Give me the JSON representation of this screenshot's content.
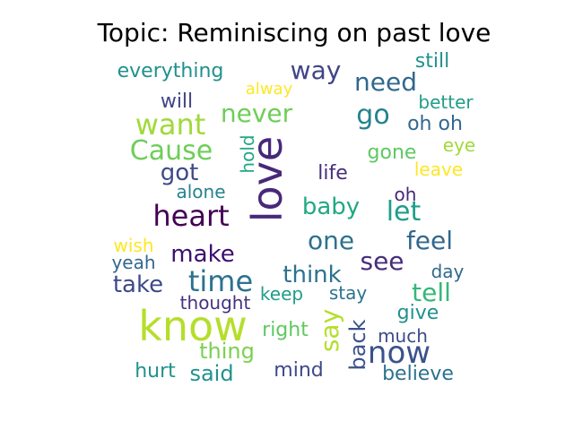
{
  "title": "Topic: Reminiscing on past love",
  "words": [
    {
      "text": "love",
      "color": "#482878",
      "vertical": true
    },
    {
      "text": "know",
      "color": "#b5de2b"
    },
    {
      "text": "heart",
      "color": "#440154"
    },
    {
      "text": "want",
      "color": "#a0da39"
    },
    {
      "text": "never",
      "color": "#6ece58"
    },
    {
      "text": "Cause",
      "color": "#6ece58"
    },
    {
      "text": "time",
      "color": "#2c728e"
    },
    {
      "text": "now",
      "color": "#3b528b"
    },
    {
      "text": "go",
      "color": "#26828e"
    },
    {
      "text": "way",
      "color": "#414487"
    },
    {
      "text": "need",
      "color": "#31688e"
    },
    {
      "text": "let",
      "color": "#1f9e89"
    },
    {
      "text": "feel",
      "color": "#31688e"
    },
    {
      "text": "one",
      "color": "#2c728e"
    },
    {
      "text": "see",
      "color": "#472d7b"
    },
    {
      "text": "make",
      "color": "#3b0f70"
    },
    {
      "text": "think",
      "color": "#2c728e"
    },
    {
      "text": "tell",
      "color": "#35b779"
    },
    {
      "text": "take",
      "color": "#3e4a89"
    },
    {
      "text": "say",
      "color": "#b5de2b",
      "vertical": true
    },
    {
      "text": "back",
      "color": "#3b528b",
      "vertical": true
    },
    {
      "text": "got",
      "color": "#3e4a89"
    },
    {
      "text": "baby",
      "color": "#22a884"
    },
    {
      "text": "still",
      "color": "#21918c"
    },
    {
      "text": "everything",
      "color": "#21918c"
    },
    {
      "text": "will",
      "color": "#414487"
    },
    {
      "text": "alway",
      "color": "#fde725"
    },
    {
      "text": "better",
      "color": "#1f9e89"
    },
    {
      "text": "oh oh",
      "color": "#31688e"
    },
    {
      "text": "eye",
      "color": "#a0da39"
    },
    {
      "text": "hold",
      "color": "#22a884",
      "vertical": true
    },
    {
      "text": "gone",
      "color": "#5ec962"
    },
    {
      "text": "leave",
      "color": "#fde725"
    },
    {
      "text": "life",
      "color": "#472d7b"
    },
    {
      "text": "alone",
      "color": "#26828e"
    },
    {
      "text": "oh",
      "color": "#482878"
    },
    {
      "text": "wish",
      "color": "#fde725"
    },
    {
      "text": "yeah",
      "color": "#31688e"
    },
    {
      "text": "day",
      "color": "#31688e"
    },
    {
      "text": "thought",
      "color": "#46327e"
    },
    {
      "text": "keep",
      "color": "#1f9e89"
    },
    {
      "text": "stay",
      "color": "#2c728e"
    },
    {
      "text": "give",
      "color": "#21918c"
    },
    {
      "text": "right",
      "color": "#5ec962"
    },
    {
      "text": "much",
      "color": "#3e4a89"
    },
    {
      "text": "thing",
      "color": "#7ad151"
    },
    {
      "text": "hurt",
      "color": "#21918c"
    },
    {
      "text": "said",
      "color": "#21918c"
    },
    {
      "text": "mind",
      "color": "#3e4a89"
    },
    {
      "text": "believe",
      "color": "#2c728e"
    }
  ]
}
